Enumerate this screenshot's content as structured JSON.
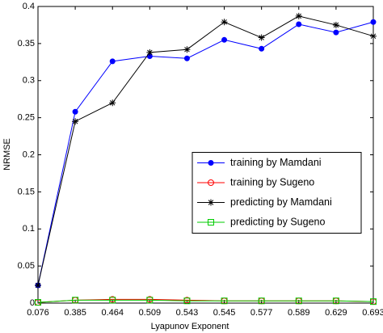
{
  "chart_data": {
    "type": "line",
    "x_label": "Lyapunov Exponent",
    "y_label": "NRMSE",
    "categories": [
      "0.076",
      "0.385",
      "0.464",
      "0.509",
      "0.543",
      "0.545",
      "0.577",
      "0.589",
      "0.629",
      "0.693"
    ],
    "ylim": [
      0,
      0.4
    ],
    "yticks": [
      0,
      0.05,
      0.1,
      0.15,
      0.2,
      0.25,
      0.3,
      0.35,
      0.4
    ],
    "legend": "center right",
    "series": [
      {
        "name": "training by Mamdani",
        "color": "#0000ff",
        "marker": "dot",
        "values": [
          0.024,
          0.258,
          0.326,
          0.333,
          0.33,
          0.355,
          0.343,
          0.376,
          0.365,
          0.379
        ]
      },
      {
        "name": "training by Sugeno",
        "color": "#ff0000",
        "marker": "circle",
        "values": [
          0.001,
          0.004,
          0.005,
          0.005,
          0.004,
          0.003,
          0.003,
          0.003,
          0.003,
          0.002
        ]
      },
      {
        "name": "predicting by Mamdani",
        "color": "#000000",
        "marker": "star",
        "values": [
          0.024,
          0.245,
          0.27,
          0.338,
          0.342,
          0.379,
          0.358,
          0.387,
          0.375,
          0.36
        ]
      },
      {
        "name": "predicting by Sugeno",
        "color": "#00cc00",
        "marker": "square",
        "values": [
          0.001,
          0.004,
          0.004,
          0.004,
          0.003,
          0.003,
          0.003,
          0.003,
          0.003,
          0.002
        ]
      }
    ]
  }
}
